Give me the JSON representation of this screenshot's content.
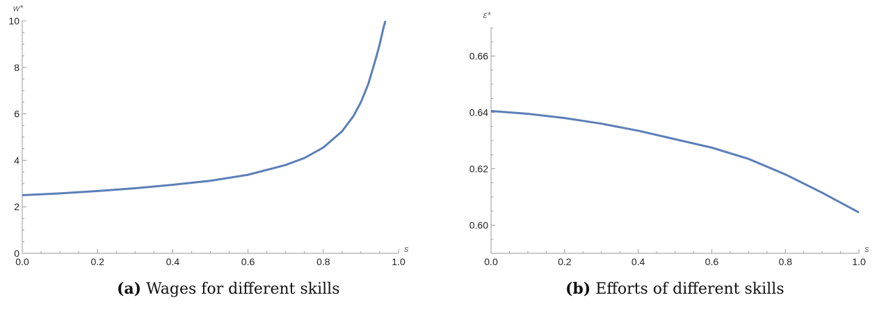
{
  "chart_data": [
    {
      "type": "line",
      "xlabel": "s",
      "ylabel": "w*",
      "xlim": [
        0,
        1
      ],
      "ylim": [
        0,
        10
      ],
      "x_ticks": [
        "0.0",
        "0.2",
        "0.4",
        "0.6",
        "0.8",
        "1.0"
      ],
      "y_ticks": [
        "0",
        "2",
        "4",
        "6",
        "8",
        "10"
      ],
      "series": [
        {
          "x": [
            0.0,
            0.1,
            0.2,
            0.3,
            0.4,
            0.5,
            0.6,
            0.7,
            0.75,
            0.8,
            0.85,
            0.88,
            0.9,
            0.92,
            0.94,
            0.95,
            0.96,
            0.965
          ],
          "y": [
            2.5,
            2.58,
            2.68,
            2.8,
            2.95,
            3.12,
            3.38,
            3.8,
            4.1,
            4.55,
            5.25,
            5.9,
            6.5,
            7.3,
            8.4,
            9.0,
            9.7,
            10.0
          ]
        }
      ],
      "caption_label": "(a)",
      "caption_text": "Wages for different skills",
      "color": "#5b7fb7"
    },
    {
      "type": "line",
      "xlabel": "s",
      "ylabel": "ε*",
      "xlim": [
        0,
        1
      ],
      "ylim": [
        0.59,
        0.67
      ],
      "x_ticks": [
        "0.0",
        "0.2",
        "0.4",
        "0.6",
        "0.8",
        "1.0"
      ],
      "y_ticks": [
        "0.60",
        "0.62",
        "0.64",
        "0.66"
      ],
      "series": [
        {
          "x": [
            0.0,
            0.1,
            0.2,
            0.3,
            0.4,
            0.5,
            0.6,
            0.7,
            0.8,
            0.9,
            1.0
          ],
          "y": [
            0.6405,
            0.6395,
            0.638,
            0.636,
            0.6335,
            0.6305,
            0.6275,
            0.6235,
            0.618,
            0.6115,
            0.6045
          ]
        }
      ],
      "caption_label": "(b)",
      "caption_text": "Efforts of different skills",
      "color": "#5b7fb7"
    }
  ]
}
